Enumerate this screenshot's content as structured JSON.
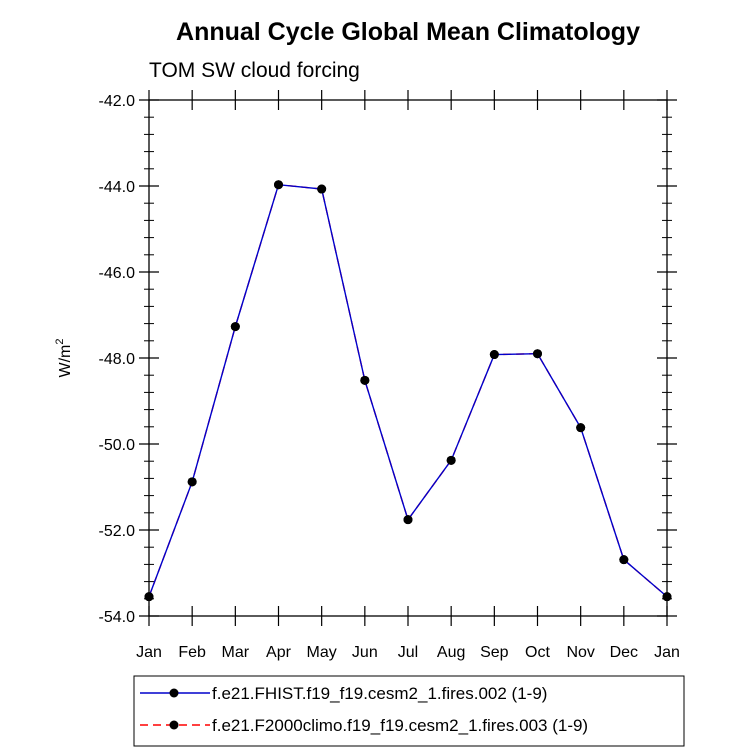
{
  "chart_data": {
    "type": "line",
    "title": "Annual Cycle Global Mean Climatology",
    "subtitle": "TOM SW cloud forcing",
    "ylabel_base": "W/m",
    "ylabel_sup": "2",
    "xlabel": "",
    "categories": [
      "Jan",
      "Feb",
      "Mar",
      "Apr",
      "May",
      "Jun",
      "Jul",
      "Aug",
      "Sep",
      "Oct",
      "Nov",
      "Dec",
      "Jan"
    ],
    "ylim": [
      -54.0,
      -42.0
    ],
    "yticks": [
      -54.0,
      -52.0,
      -50.0,
      -48.0,
      -46.0,
      -44.0,
      -42.0
    ],
    "ytick_labels": [
      "-54.0",
      "-52.0",
      "-50.0",
      "-48.0",
      "-46.0",
      "-44.0",
      "-42.0"
    ],
    "grid": false,
    "legend_position": "bottom",
    "series": [
      {
        "name": "f.e21.FHIST.f19_f19.cesm2_1.fires.002 (1-9)",
        "color": "#0000cc",
        "marker_color": "#000000",
        "dash": "solid",
        "values": [
          -53.55,
          -50.88,
          -47.27,
          -43.97,
          -44.07,
          -48.52,
          -51.76,
          -50.38,
          -47.92,
          -47.9,
          -49.62,
          -52.69,
          -53.55
        ]
      },
      {
        "name": "f.e21.F2000climo.f19_f19.cesm2_1.fires.003 (1-9)",
        "color": "#ff0000",
        "marker_color": "#000000",
        "dash": "dashed",
        "values": [
          -53.55,
          -50.88,
          -47.27,
          -43.97,
          -44.07,
          -48.52,
          -51.76,
          -50.38,
          -47.92,
          -47.9,
          -49.62,
          -52.69,
          -53.55
        ]
      }
    ]
  }
}
